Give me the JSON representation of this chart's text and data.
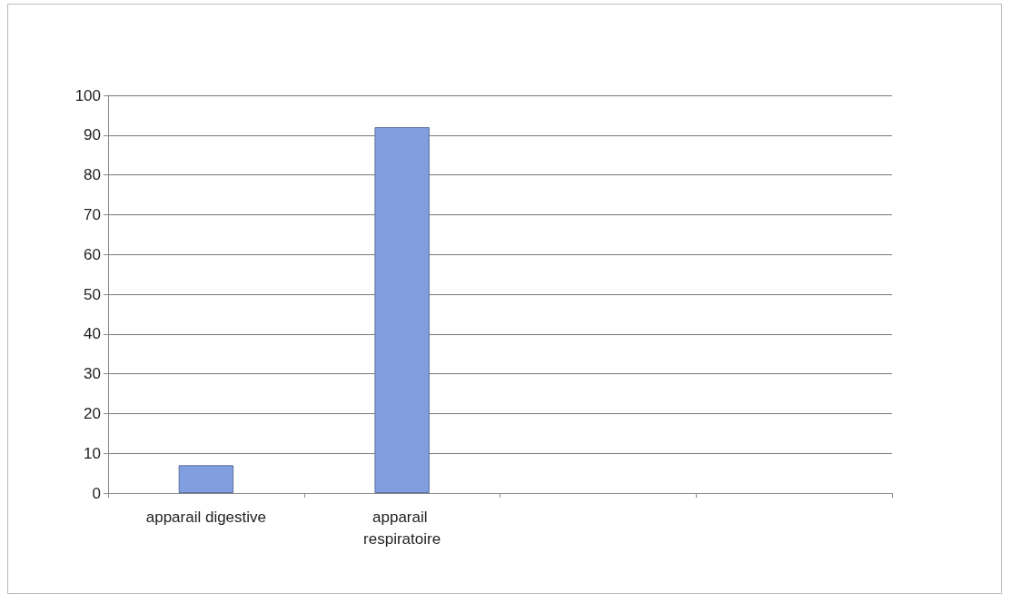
{
  "chart_data": {
    "type": "bar",
    "categories": [
      "apparail digestive",
      "apparail respiratoire",
      null,
      null
    ],
    "values": [
      7,
      92,
      null,
      null
    ],
    "color": "#809ee0",
    "ylim": [
      0,
      100
    ],
    "yticks": [
      0,
      10,
      20,
      30,
      40,
      50,
      60,
      70,
      80,
      90,
      100
    ],
    "grid": "y"
  }
}
